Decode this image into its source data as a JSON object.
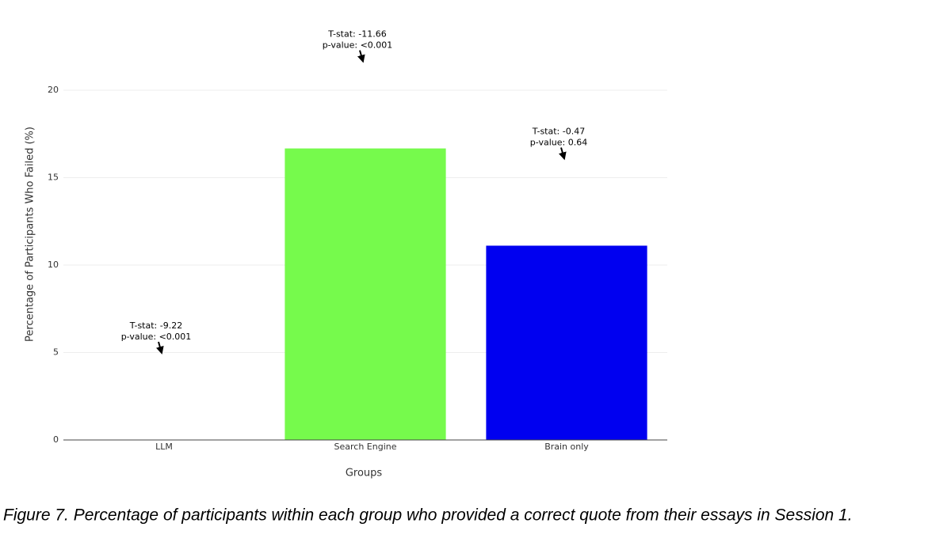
{
  "chart_data": {
    "type": "bar",
    "x_label": "Groups",
    "y_label": "Percentage of Participants Who Failed (%)",
    "caption": "Figure 7. Percentage of participants within each group who provided a correct quote from their essays in Session 1.",
    "categories": [
      "LLM",
      "Search Engine",
      "Brain only"
    ],
    "values": [
      0,
      16.67,
      11.11
    ],
    "colors": [
      "#ff0000",
      "#76fa4c",
      "#0000f0"
    ],
    "annotations": [
      [
        "T-stat: -9.22",
        "p-value: <0.001"
      ],
      [
        "T-stat: -11.66",
        "p-value: <0.001"
      ],
      [
        "T-stat: -0.47",
        "p-value: 0.64"
      ]
    ],
    "ylim": [
      0,
      20
    ],
    "yticks": [
      0,
      5,
      10,
      15,
      20
    ],
    "grid": true
  }
}
